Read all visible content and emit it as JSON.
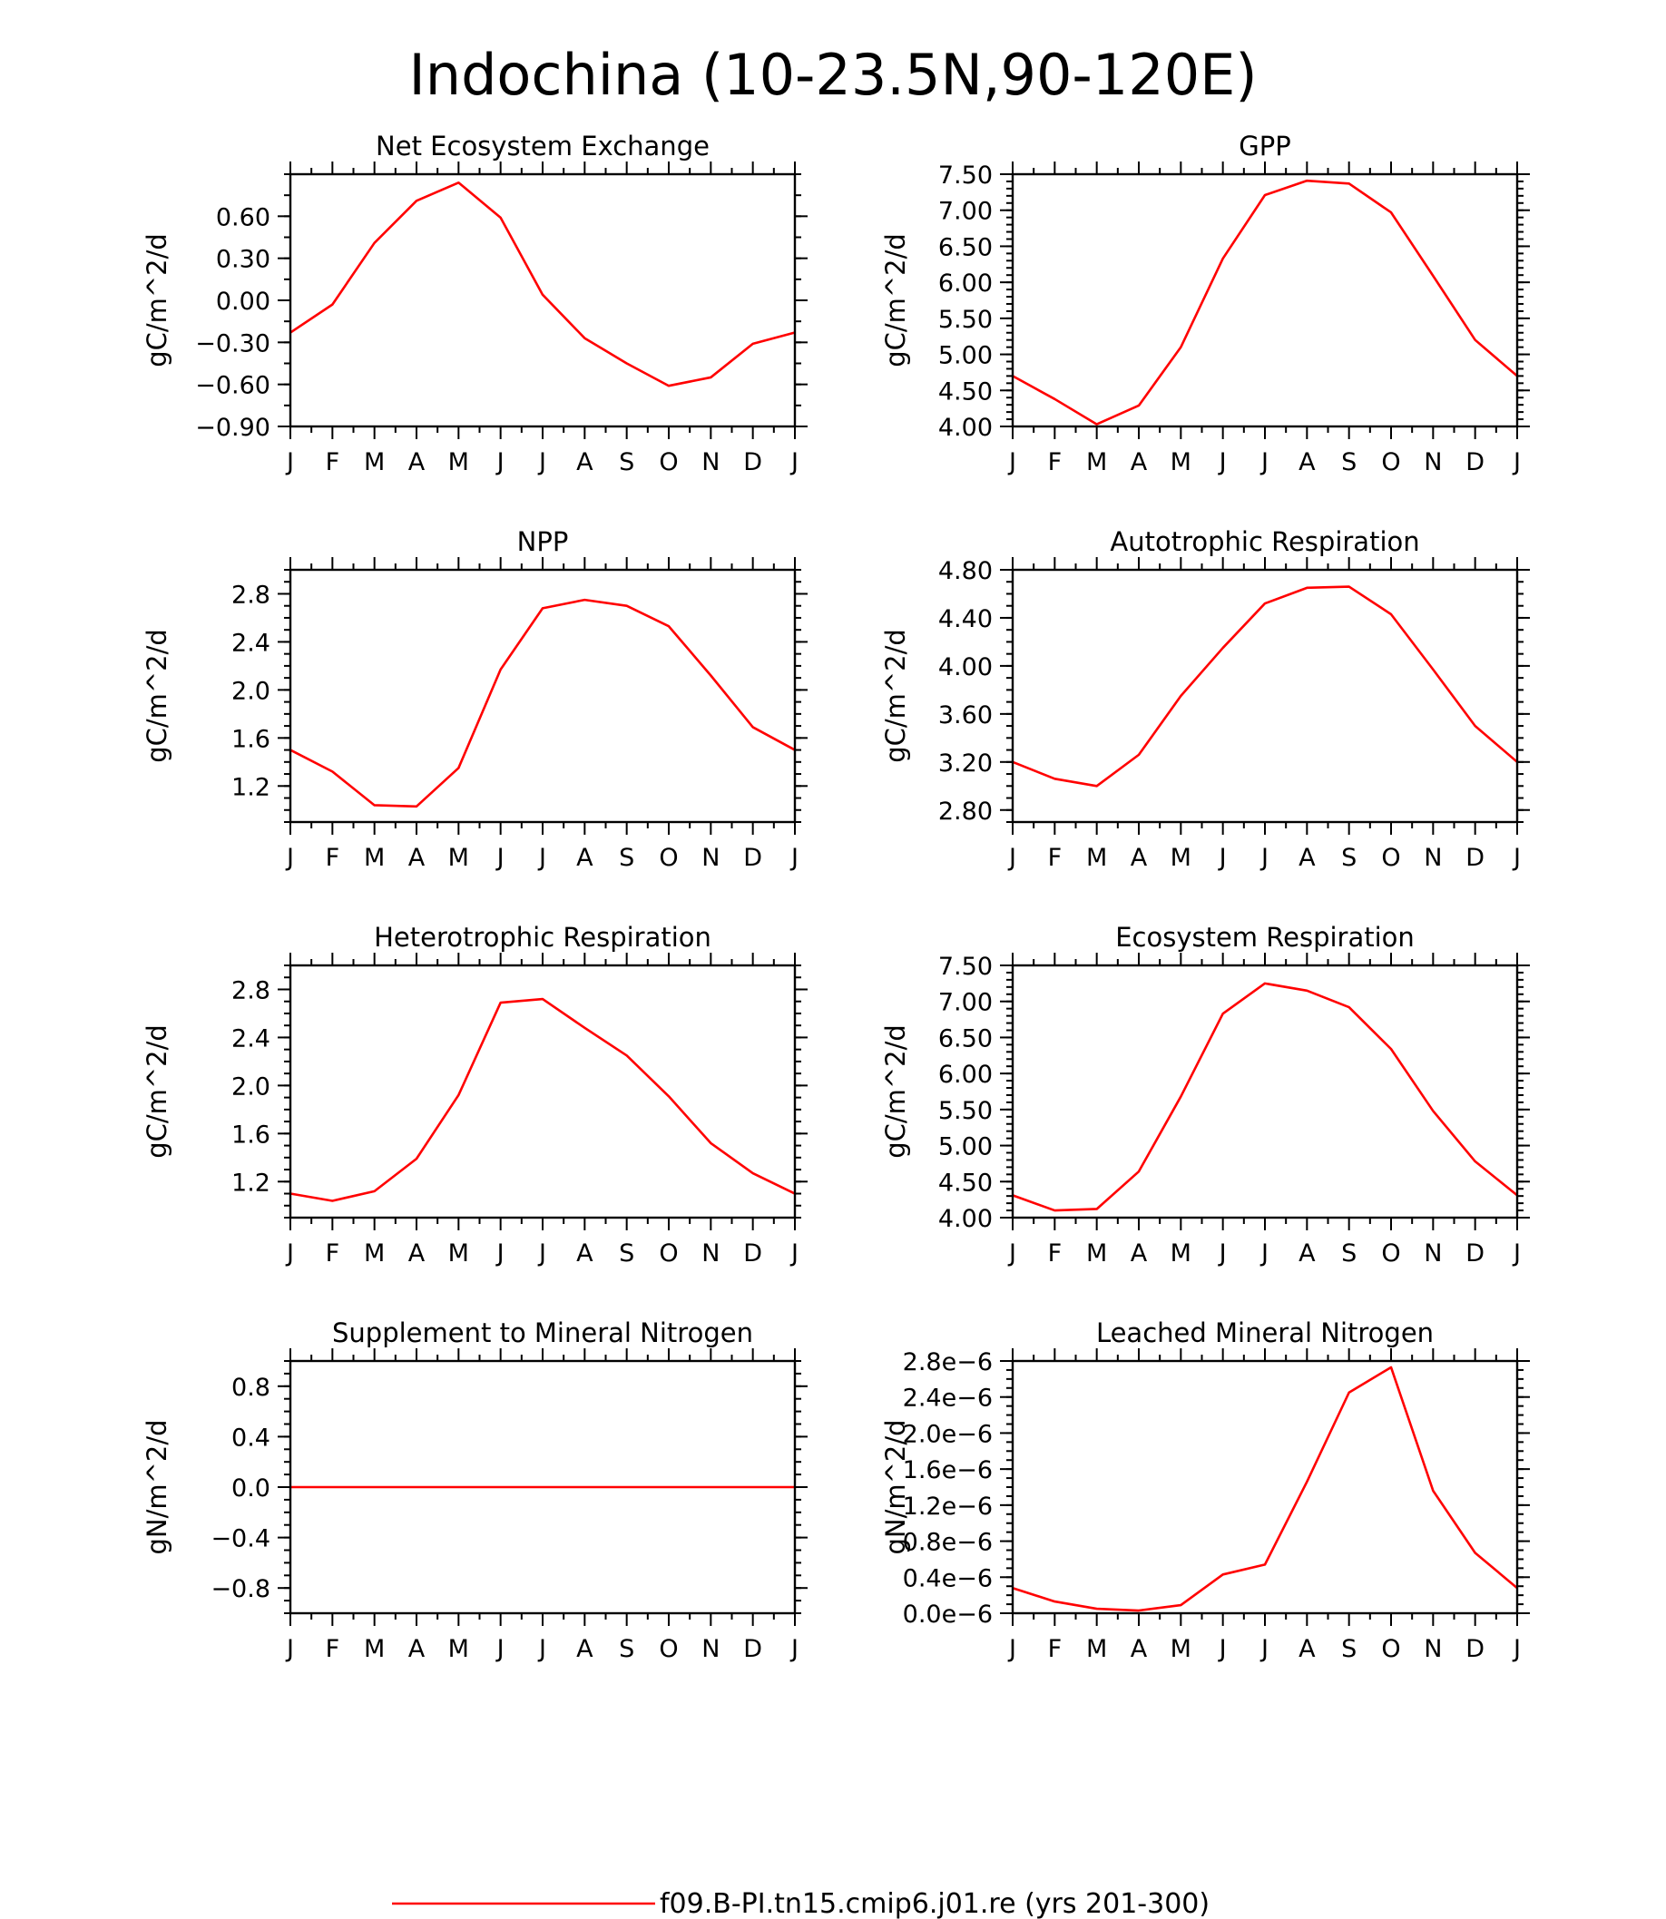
{
  "figure": {
    "title": "Indochina (10-23.5N,90-120E)",
    "line_color": "#ff0000",
    "legend": {
      "label": "f09.B-PI.tn15.cmip6.j01.re (yrs 201-300)"
    }
  },
  "chart_data": [
    {
      "type": "line",
      "title": "Net Ecosystem Exchange",
      "xlabel": "",
      "ylabel": "gC/m^2/d",
      "categories": [
        "J",
        "F",
        "M",
        "A",
        "M",
        "J",
        "J",
        "A",
        "S",
        "O",
        "N",
        "D",
        "J"
      ],
      "values": [
        -0.23,
        -0.03,
        0.41,
        0.71,
        0.84,
        0.59,
        0.04,
        -0.27,
        -0.45,
        -0.61,
        -0.55,
        -0.31,
        -0.23
      ],
      "ylim": [
        -0.9,
        0.9
      ],
      "yticks": [
        -0.9,
        -0.6,
        -0.3,
        0.0,
        0.3,
        0.6
      ],
      "ytick_labels": [
        "−0.90",
        "−0.60",
        "−0.30",
        "0.00",
        "0.30",
        "0.60"
      ],
      "minor_step": 0.15,
      "color": "#ff0000"
    },
    {
      "type": "line",
      "title": "GPP",
      "xlabel": "",
      "ylabel": "gC/m^2/d",
      "categories": [
        "J",
        "F",
        "M",
        "A",
        "M",
        "J",
        "J",
        "A",
        "S",
        "O",
        "N",
        "D",
        "J"
      ],
      "values": [
        4.7,
        4.38,
        4.03,
        4.29,
        5.1,
        6.33,
        7.21,
        7.41,
        7.37,
        6.97,
        6.09,
        5.2,
        4.7
      ],
      "ylim": [
        4.0,
        7.5
      ],
      "yticks": [
        4.0,
        4.5,
        5.0,
        5.5,
        6.0,
        6.5,
        7.0,
        7.5
      ],
      "ytick_labels": [
        "4.00",
        "4.50",
        "5.00",
        "5.50",
        "6.00",
        "6.50",
        "7.00",
        "7.50"
      ],
      "minor_step": 0.1,
      "color": "#ff0000"
    },
    {
      "type": "line",
      "title": "NPP",
      "xlabel": "",
      "ylabel": "gC/m^2/d",
      "categories": [
        "J",
        "F",
        "M",
        "A",
        "M",
        "J",
        "J",
        "A",
        "S",
        "O",
        "N",
        "D",
        "J"
      ],
      "values": [
        1.5,
        1.32,
        1.04,
        1.03,
        1.35,
        2.17,
        2.68,
        2.75,
        2.7,
        2.53,
        2.12,
        1.69,
        1.5
      ],
      "ylim": [
        0.9,
        3.0
      ],
      "yticks": [
        1.2,
        1.6,
        2.0,
        2.4,
        2.8
      ],
      "ytick_labels": [
        "1.2",
        "1.6",
        "2.0",
        "2.4",
        "2.8"
      ],
      "minor_step": 0.1,
      "color": "#ff0000"
    },
    {
      "type": "line",
      "title": "Autotrophic Respiration",
      "xlabel": "",
      "ylabel": "gC/m^2/d",
      "categories": [
        "J",
        "F",
        "M",
        "A",
        "M",
        "J",
        "J",
        "A",
        "S",
        "O",
        "N",
        "D",
        "J"
      ],
      "values": [
        3.2,
        3.06,
        3.0,
        3.26,
        3.75,
        4.15,
        4.52,
        4.65,
        4.66,
        4.43,
        3.97,
        3.5,
        3.2
      ],
      "ylim": [
        2.7,
        4.8
      ],
      "yticks": [
        2.8,
        3.2,
        3.6,
        4.0,
        4.4,
        4.8
      ],
      "ytick_labels": [
        "2.80",
        "3.20",
        "3.60",
        "4.00",
        "4.40",
        "4.80"
      ],
      "minor_step": 0.1,
      "color": "#ff0000"
    },
    {
      "type": "line",
      "title": "Heterotrophic Respiration",
      "xlabel": "",
      "ylabel": "gC/m^2/d",
      "categories": [
        "J",
        "F",
        "M",
        "A",
        "M",
        "J",
        "J",
        "A",
        "S",
        "O",
        "N",
        "D",
        "J"
      ],
      "values": [
        1.1,
        1.04,
        1.12,
        1.39,
        1.92,
        2.69,
        2.72,
        2.48,
        2.25,
        1.91,
        1.52,
        1.27,
        1.1
      ],
      "ylim": [
        0.9,
        3.0
      ],
      "yticks": [
        1.2,
        1.6,
        2.0,
        2.4,
        2.8
      ],
      "ytick_labels": [
        "1.2",
        "1.6",
        "2.0",
        "2.4",
        "2.8"
      ],
      "minor_step": 0.1,
      "color": "#ff0000"
    },
    {
      "type": "line",
      "title": "Ecosystem Respiration",
      "xlabel": "",
      "ylabel": "gC/m^2/d",
      "categories": [
        "J",
        "F",
        "M",
        "A",
        "M",
        "J",
        "J",
        "A",
        "S",
        "O",
        "N",
        "D",
        "J"
      ],
      "values": [
        4.31,
        4.1,
        4.12,
        4.64,
        5.68,
        6.83,
        7.25,
        7.15,
        6.92,
        6.34,
        5.48,
        4.78,
        4.31
      ],
      "ylim": [
        4.0,
        7.5
      ],
      "yticks": [
        4.0,
        4.5,
        5.0,
        5.5,
        6.0,
        6.5,
        7.0,
        7.5
      ],
      "ytick_labels": [
        "4.00",
        "4.50",
        "5.00",
        "5.50",
        "6.00",
        "6.50",
        "7.00",
        "7.50"
      ],
      "minor_step": 0.1,
      "color": "#ff0000"
    },
    {
      "type": "line",
      "title": "Supplement to Mineral Nitrogen",
      "xlabel": "",
      "ylabel": "gN/m^2/d",
      "categories": [
        "J",
        "F",
        "M",
        "A",
        "M",
        "J",
        "J",
        "A",
        "S",
        "O",
        "N",
        "D",
        "J"
      ],
      "values": [
        0,
        0,
        0,
        0,
        0,
        0,
        0,
        0,
        0,
        0,
        0,
        0,
        0
      ],
      "ylim": [
        -1.0,
        1.0
      ],
      "yticks": [
        -0.8,
        -0.4,
        0.0,
        0.4,
        0.8
      ],
      "ytick_labels": [
        "−0.8",
        "−0.4",
        "0.0",
        "0.4",
        "0.8"
      ],
      "minor_step": 0.1,
      "color": "#ff0000"
    },
    {
      "type": "line",
      "title": "Leached Mineral Nitrogen",
      "xlabel": "",
      "ylabel": "gN/m^2/d",
      "categories": [
        "J",
        "F",
        "M",
        "A",
        "M",
        "J",
        "J",
        "A",
        "S",
        "O",
        "N",
        "D",
        "J"
      ],
      "values": [
        2.8e-07,
        1.3e-07,
        5e-08,
        3e-08,
        9e-08,
        4.3e-07,
        5.4e-07,
        1.46e-06,
        2.45e-06,
        2.73e-06,
        1.36e-06,
        6.7e-07,
        2.8e-07
      ],
      "ylim": [
        0,
        2.8e-06
      ],
      "yticks": [
        0,
        4e-07,
        8e-07,
        1.2e-06,
        1.6e-06,
        2e-06,
        2.4e-06,
        2.8e-06
      ],
      "ytick_labels": [
        "0.0e−6",
        "0.4e−6",
        "0.8e−6",
        "1.2e−6",
        "1.6e−6",
        "2.0e−6",
        "2.4e−6",
        "2.8e−6"
      ],
      "minor_step": 1e-07,
      "color": "#ff0000"
    }
  ]
}
